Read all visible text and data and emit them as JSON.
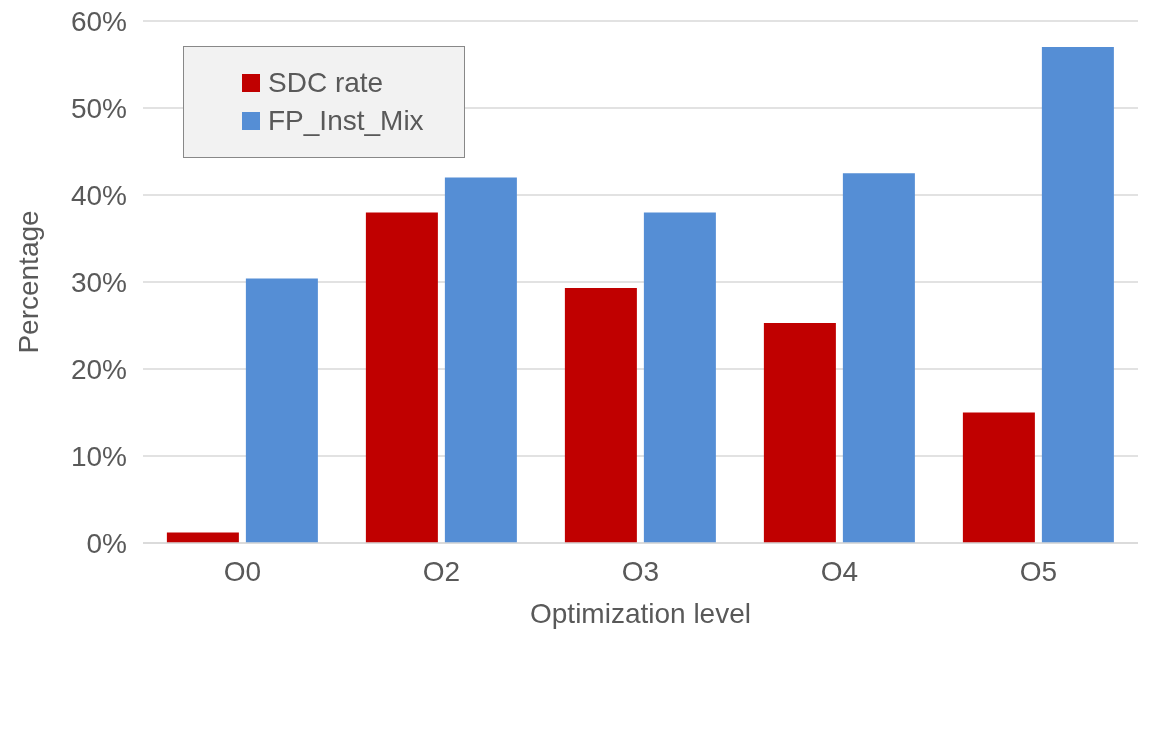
{
  "chart_data": {
    "type": "bar",
    "xlabel": "Optimization level",
    "ylabel": "Percentage",
    "categories": [
      "O0",
      "O2",
      "O3",
      "O4",
      "O5"
    ],
    "series": [
      {
        "name": "SDC rate",
        "color": "#c00000",
        "values": [
          1.2,
          38.0,
          29.3,
          25.3,
          15.0
        ]
      },
      {
        "name": "FP_Inst_Mix",
        "color": "#558ed5",
        "values": [
          30.4,
          42.0,
          38.0,
          42.5,
          57.0
        ]
      }
    ],
    "ylim": [
      0,
      60
    ],
    "yticks": [
      {
        "value": 0,
        "label": "0%"
      },
      {
        "value": 10,
        "label": "10%"
      },
      {
        "value": 20,
        "label": "20%"
      },
      {
        "value": 30,
        "label": "30%"
      },
      {
        "value": 40,
        "label": "40%"
      },
      {
        "value": 50,
        "label": "50%"
      },
      {
        "value": 60,
        "label": "60%"
      }
    ],
    "grid": "y",
    "legend": "top left"
  }
}
